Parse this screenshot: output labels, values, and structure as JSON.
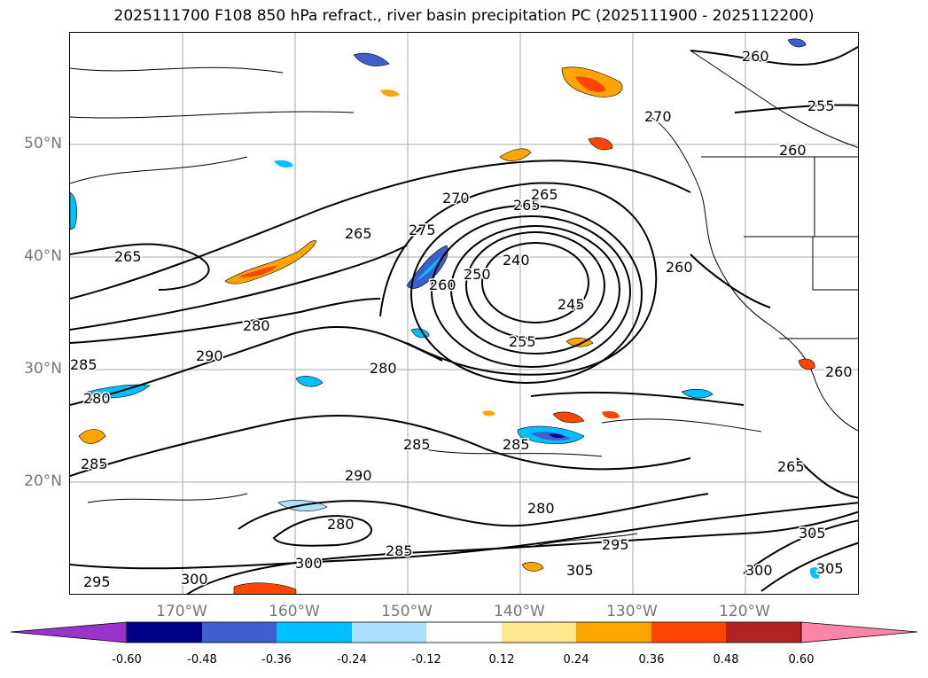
{
  "title": "2025111700 F108 850 hPa refract., river basin precipitation PC (2025111900 - 2025112200)",
  "axes": {
    "lat_labels": [
      "50°N",
      "40°N",
      "30°N",
      "20°N"
    ],
    "lon_labels": [
      "170°W",
      "160°W",
      "150°W",
      "140°W",
      "130°W",
      "120°W"
    ]
  },
  "contour_labels": [
    "260",
    "255",
    "270",
    "260",
    "265",
    "275",
    "270",
    "265",
    "240",
    "250",
    "260",
    "260",
    "245",
    "255",
    "280",
    "290",
    "285",
    "280",
    "280",
    "285",
    "285",
    "290",
    "280",
    "285",
    "280",
    "295",
    "300",
    "295",
    "285",
    "300",
    "305",
    "300",
    "305",
    "305",
    "265",
    "260",
    "265",
    "265"
  ],
  "colorbar": {
    "colors": [
      "#9933cc",
      "#00008b",
      "#3d5fce",
      "#00bfff",
      "#addfff",
      "#ffffff",
      "#ffe88c",
      "#ffa500",
      "#ff4500",
      "#b22222",
      "#ff85a8"
    ],
    "ticks": [
      "-0.60",
      "-0.48",
      "-0.36",
      "-0.24",
      "-0.12",
      "0.12",
      "0.24",
      "0.36",
      "0.48",
      "0.60"
    ]
  }
}
